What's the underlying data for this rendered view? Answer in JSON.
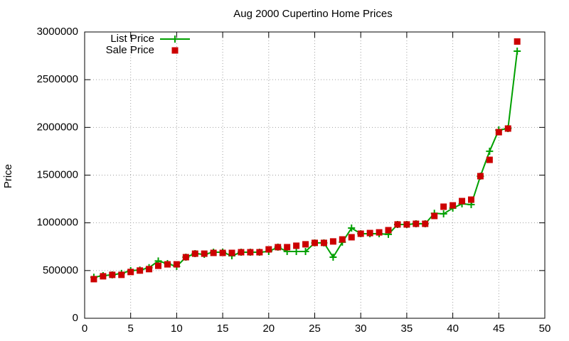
{
  "chart_data": {
    "type": "line",
    "title": "Aug 2000 Cupertino Home Prices",
    "ylabel": "Price",
    "x": [
      1,
      2,
      3,
      4,
      5,
      6,
      7,
      8,
      9,
      10,
      11,
      12,
      13,
      14,
      15,
      16,
      17,
      18,
      19,
      20,
      21,
      22,
      23,
      24,
      25,
      26,
      27,
      28,
      29,
      30,
      31,
      32,
      33,
      34,
      35,
      36,
      37,
      38,
      39,
      40,
      41,
      42,
      43,
      44,
      45,
      46,
      47
    ],
    "series": [
      {
        "name": "List Price",
        "color": "#00a000",
        "line": true,
        "marker": "plus",
        "values": [
          430000,
          447000,
          455000,
          470000,
          500000,
          505000,
          530000,
          600000,
          573000,
          543000,
          640000,
          677000,
          670000,
          692000,
          692000,
          655000,
          692000,
          692000,
          692000,
          700000,
          745000,
          700000,
          700000,
          700000,
          790000,
          790000,
          640000,
          797000,
          945000,
          886000,
          886000,
          886000,
          879000,
          983000,
          983000,
          990000,
          990000,
          1100000,
          1094000,
          1154000,
          1199000,
          1191000,
          1489000,
          1750000,
          1973000,
          1988000,
          2799000
        ]
      },
      {
        "name": "Sale Price",
        "color": "#cc0000",
        "line": false,
        "marker": "square",
        "values": [
          410000,
          440000,
          455000,
          455000,
          485000,
          500000,
          515000,
          550000,
          565000,
          565000,
          640000,
          677000,
          677000,
          685000,
          685000,
          685000,
          692000,
          692000,
          692000,
          722000,
          745000,
          745000,
          760000,
          775000,
          790000,
          790000,
          805000,
          826000,
          849000,
          886000,
          893000,
          900000,
          923000,
          983000,
          983000,
          990000,
          990000,
          1072000,
          1169000,
          1183000,
          1228000,
          1243000,
          1489000,
          1660000,
          1950000,
          1988000,
          2900000
        ]
      }
    ],
    "xlim": [
      0,
      50
    ],
    "xticks": [
      0,
      5,
      10,
      15,
      20,
      25,
      30,
      35,
      40,
      45,
      50
    ],
    "ylim": [
      0,
      3000000
    ],
    "yticks": [
      0,
      500000,
      1000000,
      1500000,
      2000000,
      2500000,
      3000000
    ],
    "grid": true,
    "legend": "top-left"
  }
}
